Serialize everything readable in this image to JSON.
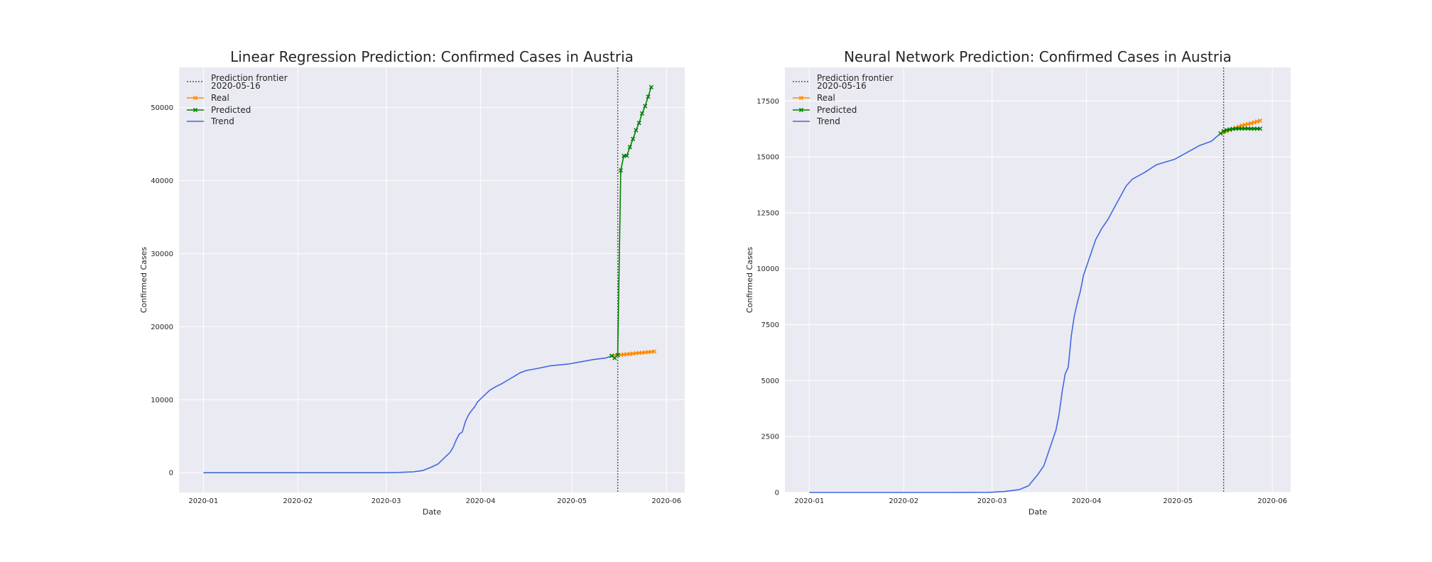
{
  "chart_data": [
    {
      "type": "line",
      "title": "Linear Regression Prediction: Confirmed Cases in Austria",
      "xlabel": "Date",
      "ylabel": "Confirmed Cases",
      "ylim": [
        -2700,
        55500
      ],
      "xlim": [
        "2019-12-24",
        "2020-06-07"
      ],
      "grid": true,
      "legend_position": "upper-left",
      "x_ticks": [
        "2020-01",
        "2020-02",
        "2020-03",
        "2020-04",
        "2020-05",
        "2020-06"
      ],
      "y_ticks": [
        0,
        10000,
        20000,
        30000,
        40000,
        50000
      ],
      "y_tick_labels": [
        "0",
        "10000",
        "20000",
        "30000",
        "40000",
        "50000"
      ],
      "frontier": {
        "label": "Prediction frontier",
        "date": "2020-05-16",
        "date_label": " 2020-05-16",
        "color": "#555555"
      },
      "series": [
        {
          "name": "Real",
          "color": "#ff8c00",
          "marker": "x",
          "points": [
            [
              "2020-05-14",
              16013
            ],
            [
              "2020-05-15",
              16063
            ],
            [
              "2020-05-16",
              16112
            ],
            [
              "2020-05-17",
              16150
            ],
            [
              "2020-05-18",
              16180
            ],
            [
              "2020-05-19",
              16230
            ],
            [
              "2020-05-20",
              16265
            ],
            [
              "2020-05-21",
              16315
            ],
            [
              "2020-05-22",
              16365
            ],
            [
              "2020-05-23",
              16400
            ],
            [
              "2020-05-24",
              16440
            ],
            [
              "2020-05-25",
              16480
            ],
            [
              "2020-05-26",
              16520
            ],
            [
              "2020-05-27",
              16560
            ],
            [
              "2020-05-28",
              16600
            ]
          ]
        },
        {
          "name": "Predicted",
          "color": "#008000",
          "marker": "x",
          "points": [
            [
              "2020-05-14",
              16000
            ],
            [
              "2020-05-15",
              15700
            ],
            [
              "2020-05-16",
              16100
            ],
            [
              "2020-05-17",
              41400
            ],
            [
              "2020-05-18",
              43400
            ],
            [
              "2020-05-19",
              43400
            ],
            [
              "2020-05-20",
              44600
            ],
            [
              "2020-05-21",
              45700
            ],
            [
              "2020-05-22",
              46900
            ],
            [
              "2020-05-23",
              47900
            ],
            [
              "2020-05-24",
              49200
            ],
            [
              "2020-05-25",
              50200
            ],
            [
              "2020-05-26",
              51500
            ],
            [
              "2020-05-27",
              52800
            ]
          ]
        },
        {
          "name": "Trend",
          "color": "#4169e1",
          "marker": "",
          "points": [
            [
              "2020-01-01",
              0
            ],
            [
              "2020-01-15",
              0
            ],
            [
              "2020-02-01",
              0
            ],
            [
              "2020-02-15",
              0
            ],
            [
              "2020-02-29",
              5
            ],
            [
              "2020-03-05",
              40
            ],
            [
              "2020-03-10",
              130
            ],
            [
              "2020-03-13",
              300
            ],
            [
              "2020-03-16",
              800
            ],
            [
              "2020-03-18",
              1200
            ],
            [
              "2020-03-20",
              2000
            ],
            [
              "2020-03-22",
              2800
            ],
            [
              "2020-03-23",
              3500
            ],
            [
              "2020-03-24",
              4500
            ],
            [
              "2020-03-25",
              5300
            ],
            [
              "2020-03-26",
              5600
            ],
            [
              "2020-03-27",
              7000
            ],
            [
              "2020-03-28",
              7900
            ],
            [
              "2020-03-29",
              8500
            ],
            [
              "2020-03-30",
              9000
            ],
            [
              "2020-03-31",
              9700
            ],
            [
              "2020-04-02",
              10500
            ],
            [
              "2020-04-04",
              11300
            ],
            [
              "2020-04-06",
              11800
            ],
            [
              "2020-04-08",
              12200
            ],
            [
              "2020-04-10",
              12700
            ],
            [
              "2020-04-12",
              13200
            ],
            [
              "2020-04-14",
              13700
            ],
            [
              "2020-04-16",
              14000
            ],
            [
              "2020-04-20",
              14300
            ],
            [
              "2020-04-24",
              14650
            ],
            [
              "2020-04-30",
              14900
            ],
            [
              "2020-05-04",
              15200
            ],
            [
              "2020-05-08",
              15500
            ],
            [
              "2020-05-12",
              15700
            ],
            [
              "2020-05-14",
              16000
            ]
          ]
        }
      ]
    },
    {
      "type": "line",
      "title": "Neural Network Prediction: Confirmed Cases in Austria",
      "xlabel": "Date",
      "ylabel": "Confirmed Cases",
      "ylim": [
        0,
        19000
      ],
      "xlim": [
        "2019-12-24",
        "2020-06-07"
      ],
      "grid": true,
      "legend_position": "upper-left",
      "x_ticks": [
        "2020-01",
        "2020-02",
        "2020-03",
        "2020-04",
        "2020-05",
        "2020-06"
      ],
      "y_ticks": [
        0,
        2500,
        5000,
        7500,
        10000,
        12500,
        15000,
        17500
      ],
      "y_tick_labels": [
        "0",
        "2500",
        "5000",
        "7500",
        "10000",
        "12500",
        "15000",
        "17500"
      ],
      "frontier": {
        "label": "Prediction frontier",
        "date": "2020-05-16",
        "date_label": " 2020-05-16",
        "color": "#555555"
      },
      "series": [
        {
          "name": "Real",
          "color": "#ff8c00",
          "marker": "x",
          "points": [
            [
              "2020-05-15",
              16050
            ],
            [
              "2020-05-16",
              16112
            ],
            [
              "2020-05-17",
              16150
            ],
            [
              "2020-05-18",
              16200
            ],
            [
              "2020-05-19",
              16250
            ],
            [
              "2020-05-20",
              16300
            ],
            [
              "2020-05-21",
              16350
            ],
            [
              "2020-05-22",
              16400
            ],
            [
              "2020-05-23",
              16430
            ],
            [
              "2020-05-24",
              16470
            ],
            [
              "2020-05-25",
              16500
            ],
            [
              "2020-05-26",
              16540
            ],
            [
              "2020-05-27",
              16580
            ],
            [
              "2020-05-28",
              16620
            ]
          ]
        },
        {
          "name": "Predicted",
          "color": "#008000",
          "marker": "x",
          "points": [
            [
              "2020-05-15",
              16050
            ],
            [
              "2020-05-16",
              16150
            ],
            [
              "2020-05-17",
              16200
            ],
            [
              "2020-05-18",
              16230
            ],
            [
              "2020-05-19",
              16250
            ],
            [
              "2020-05-20",
              16260
            ],
            [
              "2020-05-21",
              16265
            ],
            [
              "2020-05-22",
              16265
            ],
            [
              "2020-05-23",
              16265
            ],
            [
              "2020-05-24",
              16265
            ],
            [
              "2020-05-25",
              16260
            ],
            [
              "2020-05-26",
              16260
            ],
            [
              "2020-05-27",
              16260
            ],
            [
              "2020-05-28",
              16260
            ]
          ]
        },
        {
          "name": "Trend",
          "color": "#4169e1",
          "marker": "",
          "points": [
            [
              "2020-01-01",
              0
            ],
            [
              "2020-01-15",
              0
            ],
            [
              "2020-02-01",
              0
            ],
            [
              "2020-02-15",
              0
            ],
            [
              "2020-02-29",
              5
            ],
            [
              "2020-03-05",
              40
            ],
            [
              "2020-03-10",
              130
            ],
            [
              "2020-03-13",
              300
            ],
            [
              "2020-03-16",
              800
            ],
            [
              "2020-03-18",
              1200
            ],
            [
              "2020-03-20",
              2000
            ],
            [
              "2020-03-22",
              2800
            ],
            [
              "2020-03-23",
              3500
            ],
            [
              "2020-03-24",
              4500
            ],
            [
              "2020-03-25",
              5300
            ],
            [
              "2020-03-26",
              5600
            ],
            [
              "2020-03-27",
              7000
            ],
            [
              "2020-03-28",
              7900
            ],
            [
              "2020-03-29",
              8500
            ],
            [
              "2020-03-30",
              9000
            ],
            [
              "2020-03-31",
              9700
            ],
            [
              "2020-04-02",
              10500
            ],
            [
              "2020-04-04",
              11300
            ],
            [
              "2020-04-06",
              11800
            ],
            [
              "2020-04-08",
              12200
            ],
            [
              "2020-04-10",
              12700
            ],
            [
              "2020-04-12",
              13200
            ],
            [
              "2020-04-14",
              13700
            ],
            [
              "2020-04-16",
              14000
            ],
            [
              "2020-04-20",
              14300
            ],
            [
              "2020-04-24",
              14650
            ],
            [
              "2020-04-30",
              14900
            ],
            [
              "2020-05-04",
              15200
            ],
            [
              "2020-05-08",
              15500
            ],
            [
              "2020-05-12",
              15700
            ],
            [
              "2020-05-15",
              16050
            ]
          ]
        }
      ]
    }
  ]
}
